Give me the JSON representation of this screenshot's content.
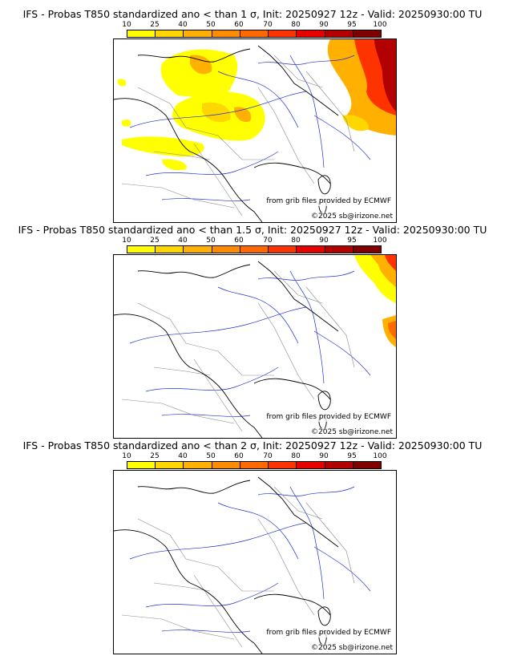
{
  "legend": {
    "labels": [
      "10",
      "25",
      "40",
      "50",
      "60",
      "70",
      "80",
      "90",
      "95",
      "100"
    ],
    "colors": [
      "#ffff00",
      "#ffd700",
      "#ffb000",
      "#ff8c00",
      "#ff6a00",
      "#ff3300",
      "#e60000",
      "#b30000",
      "#800000",
      "#5a0000"
    ]
  },
  "panels": [
    {
      "title": "IFS - Probas T850  standardized ano < than 1 σ, Init: 20250927 12z - Valid: 20250930:00 TU",
      "source_credit": "from grib files provided by ECMWF",
      "copyright": "©2025 sb@irizone.net"
    },
    {
      "title": "IFS - Probas T850  standardized ano < than 1.5 σ, Init: 20250927 12z - Valid: 20250930:00 TU",
      "source_credit": "from grib files provided by ECMWF",
      "copyright": "©2025 sb@irizone.net"
    },
    {
      "title": "IFS - Probas T850  standardized ano < than 2 σ, Init: 20250927 12z - Valid: 20250930:00 TU",
      "source_credit": "from grib files provided by ECMWF",
      "copyright": "©2025 sb@irizone.net"
    }
  ]
}
